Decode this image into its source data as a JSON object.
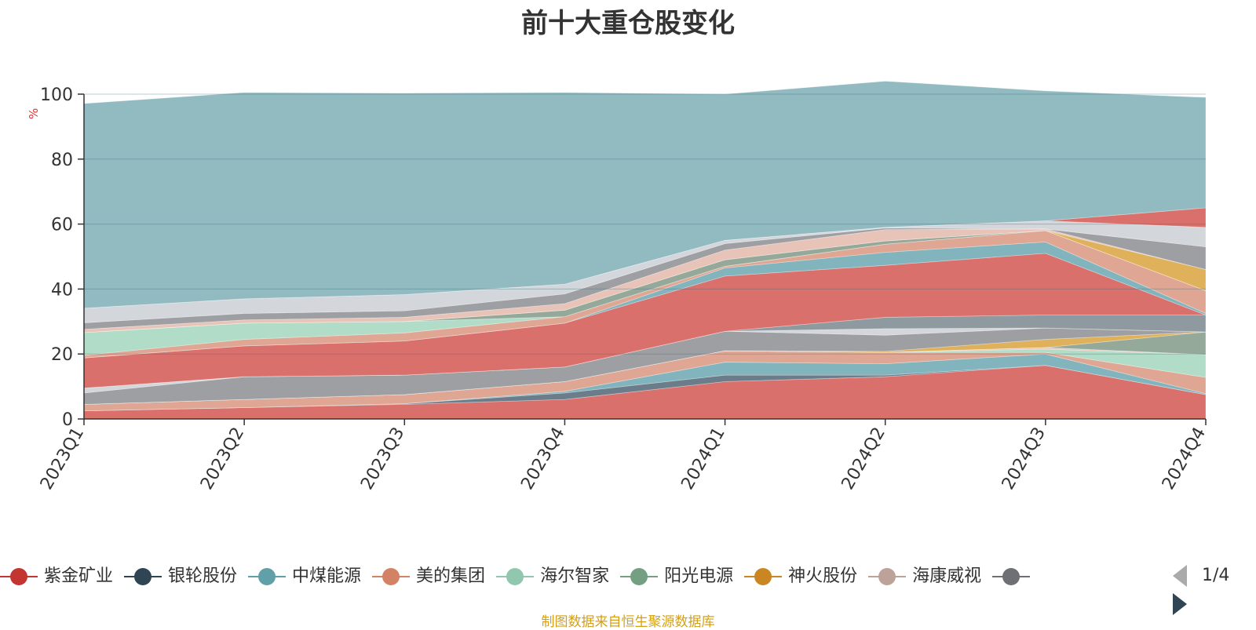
{
  "chart_data": {
    "type": "area",
    "title": "前十大重仓股变化",
    "ylabel": "%",
    "xlabel": "",
    "stacked": true,
    "categories": [
      "2023Q1",
      "2023Q2",
      "2023Q3",
      "2023Q4",
      "2024Q1",
      "2024Q2",
      "2024Q3",
      "2024Q4"
    ],
    "ylim": [
      0,
      100
    ],
    "yticks": [
      0,
      20,
      40,
      60,
      80,
      100
    ],
    "grid": true,
    "bands": [
      {
        "color": "#d9706c",
        "values": [
          2.5,
          3.5,
          4.5,
          6,
          11.5,
          13,
          16.5,
          7.5
        ]
      },
      {
        "color": "#6b7c8a",
        "values": [
          0,
          0,
          0.2,
          2,
          2,
          0.5,
          0,
          0
        ]
      },
      {
        "color": "#82b4bd",
        "values": [
          0,
          0,
          0,
          0.5,
          4,
          3.5,
          3.5,
          0.3
        ]
      },
      {
        "color": "#e0a694",
        "values": [
          2,
          2.5,
          2.8,
          3,
          3.5,
          3.5,
          0.5,
          5
        ]
      },
      {
        "color": "#b0dcc8",
        "values": [
          0,
          0,
          0,
          0,
          0,
          0,
          1,
          7
        ]
      },
      {
        "color": "#e8c4b8",
        "values": [
          0,
          0,
          0,
          0,
          0,
          0,
          0.5,
          0
        ]
      },
      {
        "color": "#95a99a",
        "values": [
          0,
          0,
          0,
          0,
          0,
          0,
          0,
          7
        ]
      },
      {
        "color": "#dfb15a",
        "values": [
          0,
          0,
          0,
          0,
          0,
          0.3,
          2.5,
          0
        ]
      },
      {
        "color": "#9e9fa3",
        "values": [
          3.5,
          7,
          6,
          4.5,
          6,
          5,
          3.5,
          0
        ]
      },
      {
        "color": "#d3d6db",
        "values": [
          1.5,
          0,
          0,
          0,
          0,
          2,
          0,
          0
        ]
      },
      {
        "color": "#8f9aa0",
        "values": [
          0,
          0,
          0,
          0,
          0,
          3.5,
          4,
          5.2
        ]
      },
      {
        "color": "#d9706c",
        "values": [
          9.3,
          9.5,
          10.5,
          13.5,
          17,
          16,
          19,
          0
        ]
      },
      {
        "color": "#82b4bd",
        "values": [
          0,
          0,
          0,
          0,
          2.5,
          4,
          3.5,
          0.5
        ]
      },
      {
        "color": "#e0a694",
        "values": [
          0.8,
          2,
          2.5,
          2,
          0.5,
          2.5,
          3.5,
          7
        ]
      },
      {
        "color": "#b0dcc8",
        "values": [
          7,
          5,
          3.5,
          0,
          0,
          0,
          0,
          0
        ]
      },
      {
        "color": "#95a99a",
        "values": [
          0,
          0,
          0,
          2,
          2,
          1,
          0,
          0
        ]
      },
      {
        "color": "#dfb15a",
        "values": [
          0,
          0,
          0,
          0,
          0,
          0,
          0,
          6.5
        ]
      },
      {
        "color": "#e8c4b8",
        "values": [
          1,
          1,
          1.3,
          2,
          3,
          3.5,
          0.5,
          0
        ]
      },
      {
        "color": "#9e9fa3",
        "values": [
          2,
          2,
          2,
          3,
          2,
          0.5,
          0,
          7
        ]
      },
      {
        "color": "#d3d6db",
        "values": [
          4.5,
          4.5,
          5,
          3,
          1,
          0.2,
          2.5,
          6
        ]
      },
      {
        "color": "#d9706c",
        "values": [
          0,
          0,
          0,
          0,
          0,
          0,
          0,
          6
        ]
      },
      {
        "color": "#91bac1",
        "values": [
          63,
          63.5,
          62,
          59,
          45,
          45,
          40,
          34
        ]
      }
    ]
  },
  "legend": {
    "items": [
      {
        "label": "紫金矿业",
        "color": "#c23531"
      },
      {
        "label": "银轮股份",
        "color": "#2f4554"
      },
      {
        "label": "中煤能源",
        "color": "#61a0a8"
      },
      {
        "label": "美的集团",
        "color": "#d48265"
      },
      {
        "label": "海尔智家",
        "color": "#91c7ae"
      },
      {
        "label": "阳光电源",
        "color": "#749f83"
      },
      {
        "label": "神火股份",
        "color": "#ca8622"
      },
      {
        "label": "海康威视",
        "color": "#bda29a"
      },
      {
        "label": "",
        "color": "#6e7074"
      }
    ],
    "page_info": "1/4"
  },
  "source": "制图数据来自恒生聚源数据库"
}
